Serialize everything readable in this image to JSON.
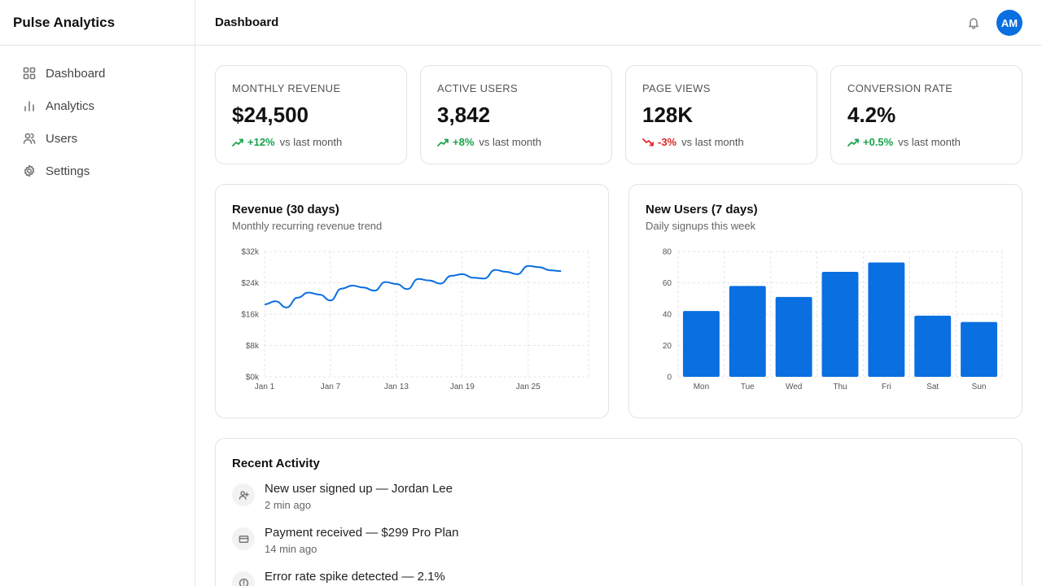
{
  "app": {
    "name": "Pulse Analytics"
  },
  "sidebar": {
    "items": [
      {
        "label": "Dashboard",
        "icon": "grid-icon"
      },
      {
        "label": "Analytics",
        "icon": "bar-chart-icon"
      },
      {
        "label": "Users",
        "icon": "users-icon"
      },
      {
        "label": "Settings",
        "icon": "gear-icon"
      }
    ]
  },
  "header": {
    "title": "Dashboard",
    "avatar_initials": "AM",
    "bell_icon": "bell-icon"
  },
  "stats": [
    {
      "label": "MONTHLY REVENUE",
      "value": "$24,500",
      "change": "+12%",
      "direction": "up",
      "note": "vs last month"
    },
    {
      "label": "ACTIVE USERS",
      "value": "3,842",
      "change": "+8%",
      "direction": "up",
      "note": "vs last month"
    },
    {
      "label": "PAGE VIEWS",
      "value": "128K",
      "change": "-3%",
      "direction": "down",
      "note": "vs last month"
    },
    {
      "label": "CONVERSION RATE",
      "value": "4.2%",
      "change": "+0.5%",
      "direction": "up",
      "note": "vs last month"
    }
  ],
  "colors": {
    "accent": "#0a6fe0",
    "up": "#16a34a",
    "down": "#dc2626",
    "grid": "#e5e5e5"
  },
  "charts": [
    {
      "title": "Revenue (30 days)",
      "subtitle": "Monthly recurring revenue trend"
    },
    {
      "title": "New Users (7 days)",
      "subtitle": "Daily signups this week"
    }
  ],
  "chart_data": [
    {
      "type": "line",
      "title": "Revenue (30 days)",
      "subtitle": "Monthly recurring revenue trend",
      "x": [
        "Jan 1",
        "Jan 2",
        "Jan 3",
        "Jan 4",
        "Jan 5",
        "Jan 6",
        "Jan 7",
        "Jan 8",
        "Jan 9",
        "Jan 10",
        "Jan 11",
        "Jan 12",
        "Jan 13",
        "Jan 14",
        "Jan 15",
        "Jan 16",
        "Jan 17",
        "Jan 18",
        "Jan 19",
        "Jan 20",
        "Jan 21",
        "Jan 22",
        "Jan 23",
        "Jan 24",
        "Jan 25",
        "Jan 26",
        "Jan 27",
        "Jan 28"
      ],
      "x_tick_labels": [
        "Jan 1",
        "Jan 7",
        "Jan 13",
        "Jan 19",
        "Jan 25"
      ],
      "y_tick_labels": [
        "$0k",
        "$8k",
        "$16k",
        "$24k",
        "$32k"
      ],
      "ylim": [
        0,
        32000
      ],
      "grid": true,
      "series": [
        {
          "values": [
            18500,
            19300,
            17700,
            20200,
            21500,
            21000,
            19500,
            22500,
            23300,
            22800,
            22000,
            24200,
            23700,
            22400,
            25000,
            24600,
            23800,
            25800,
            26200,
            25300,
            25100,
            27300,
            26800,
            26200,
            28300,
            28000,
            27200,
            27000
          ]
        }
      ]
    },
    {
      "type": "bar",
      "title": "New Users (7 days)",
      "subtitle": "Daily signups this week",
      "categories": [
        "Mon",
        "Tue",
        "Wed",
        "Thu",
        "Fri",
        "Sat",
        "Sun"
      ],
      "y_tick_labels": [
        "0",
        "20",
        "40",
        "60",
        "80"
      ],
      "ylim": [
        0,
        80
      ],
      "grid": true,
      "values": [
        42,
        58,
        51,
        67,
        73,
        39,
        35
      ]
    }
  ],
  "activity": {
    "title": "Recent Activity",
    "items": [
      {
        "icon": "user-plus-icon",
        "text": "New user signed up — Jordan Lee",
        "time": "2 min ago"
      },
      {
        "icon": "credit-card-icon",
        "text": "Payment received — $299 Pro Plan",
        "time": "14 min ago"
      },
      {
        "icon": "alert-icon",
        "text": "Error rate spike detected — 2.1%",
        "time": ""
      }
    ]
  }
}
